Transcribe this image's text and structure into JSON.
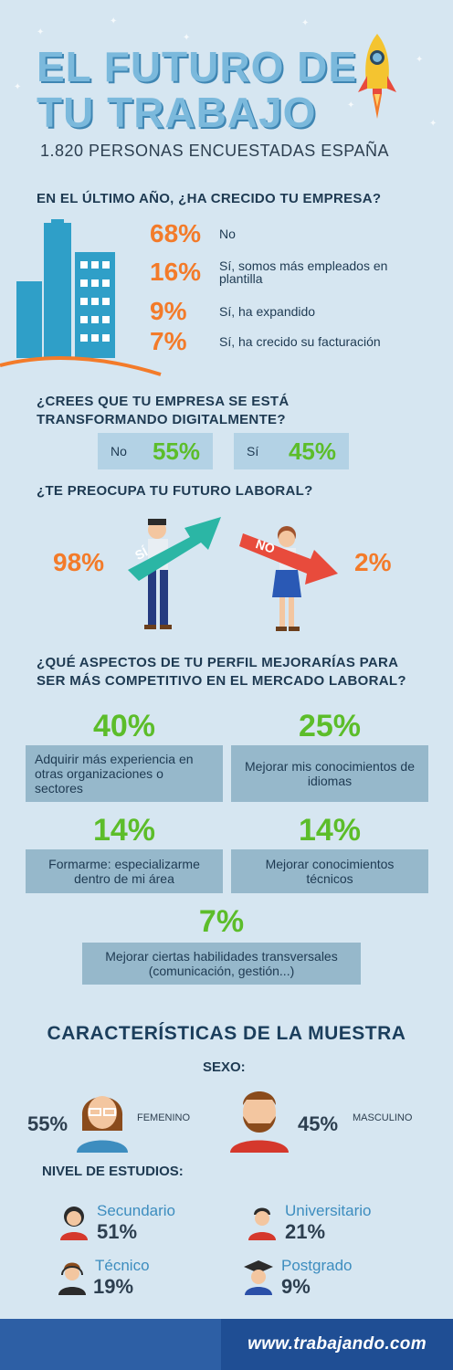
{
  "header": {
    "title_line1": "EL FUTURO DE",
    "title_line2": "TU TRABAJO",
    "subtitle": "1.820 PERSONAS ENCUESTADAS ESPAÑA"
  },
  "q1": {
    "question": "EN EL ÚLTIMO AÑO, ¿HA CRECIDO TU EMPRESA?",
    "answers": [
      {
        "pct": "68%",
        "label": "No"
      },
      {
        "pct": "16%",
        "label": "Sí, somos más empleados en plantilla"
      },
      {
        "pct": "9%",
        "label": "Sí, ha expandido"
      },
      {
        "pct": "7%",
        "label": "Sí, ha crecido su facturación"
      }
    ]
  },
  "q2": {
    "question": "¿CREES QUE TU EMPRESA SE ESTÁ TRANSFORMANDO DIGITALMENTE?",
    "no_label": "No",
    "no_pct": "55%",
    "yes_label": "Sí",
    "yes_pct": "45%"
  },
  "q3": {
    "question": "¿TE PREOCUPA TU FUTURO LABORAL?",
    "yes_pct": "98%",
    "yes_arrow": "SÍ",
    "no_pct": "2%",
    "no_arrow": "NO"
  },
  "q4": {
    "question": "¿QUÉ ASPECTOS DE TU PERFIL MEJORARÍAS PARA SER MÁS COMPETITIVO EN EL MERCADO LABORAL?",
    "items": [
      {
        "pct": "40%",
        "label": "Adquirir más experiencia en otras organizaciones o sectores"
      },
      {
        "pct": "25%",
        "label": "Mejorar mis conocimientos de idiomas"
      },
      {
        "pct": "14%",
        "label": "Formarme: especializarme dentro de mi área"
      },
      {
        "pct": "14%",
        "label": "Mejorar conocimientos técnicos"
      },
      {
        "pct": "7%",
        "label": "Mejorar ciertas habilidades transversales (comunicación, gestión...)"
      }
    ]
  },
  "sample": {
    "title": "CARACTERÍSTICAS DE LA MUESTRA",
    "sex_label": "SEXO:",
    "female_pct": "55%",
    "female_label": "FEMENINO",
    "male_pct": "45%",
    "male_label": "MASCULINO",
    "education_label": "NIVEL DE ESTUDIOS:",
    "education": [
      {
        "name": "Secundario",
        "pct": "51%"
      },
      {
        "name": "Universitario",
        "pct": "21%"
      },
      {
        "name": "Técnico",
        "pct": "19%"
      },
      {
        "name": "Postgrado",
        "pct": "9%"
      }
    ]
  },
  "footer": {
    "site": "www.trabajando.com"
  },
  "colors": {
    "background": "#d6e6f1",
    "orange": "#f37b2a",
    "green": "#5cbd2a",
    "navy": "#1e3a52",
    "footer_blue": "#2d5fa5"
  }
}
